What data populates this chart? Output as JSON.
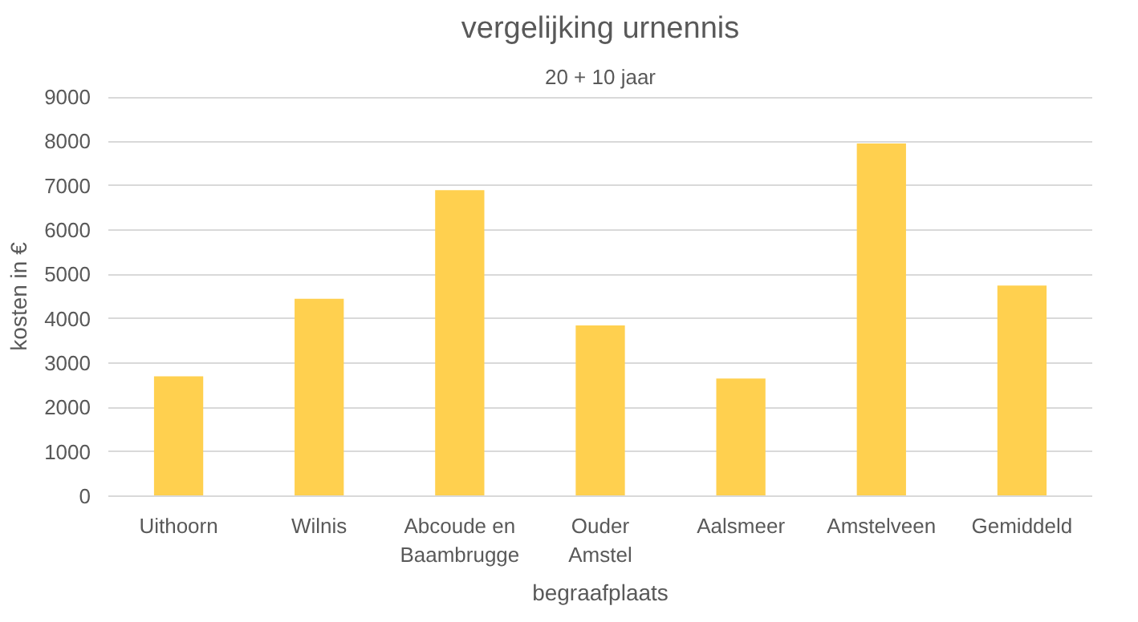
{
  "chart_data": {
    "type": "bar",
    "title": "vergelijking urnennis",
    "subtitle": "20 + 10 jaar",
    "xlabel": "begraafplaats",
    "ylabel": "kosten in €",
    "categories": [
      "Uithoorn",
      "Wilnis",
      "Abcoude en Baambrugge",
      "Ouder Amstel",
      "Aalsmeer",
      "Amstelveen",
      "Gemiddeld"
    ],
    "values": [
      2700,
      4450,
      6900,
      3850,
      2650,
      7950,
      4750
    ],
    "color": "#ffd04f",
    "ylim": [
      0,
      9000
    ],
    "yticks": [
      0,
      1000,
      2000,
      3000,
      4000,
      5000,
      6000,
      7000,
      8000,
      9000
    ],
    "grid": "y"
  }
}
